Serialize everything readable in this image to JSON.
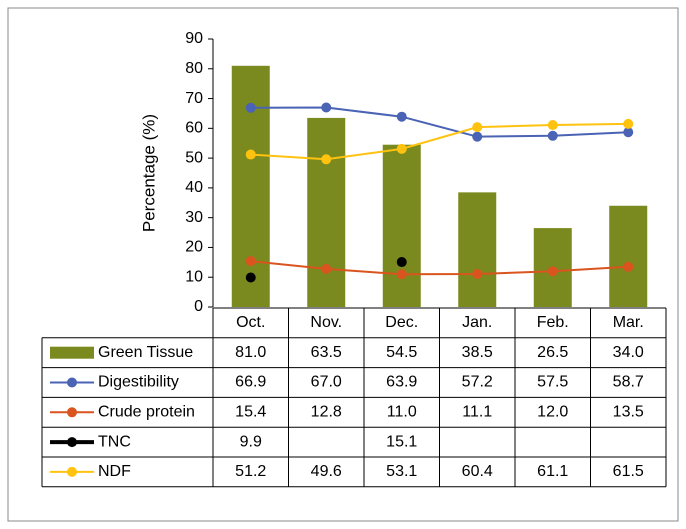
{
  "chart_data": {
    "type": "bar",
    "ylabel": "Percentage (%)",
    "categories": [
      "Oct.",
      "Nov.",
      "Dec.",
      "Jan.",
      "Feb.",
      "Mar."
    ],
    "ylim": [
      0,
      90
    ],
    "yticks": [
      0,
      10,
      20,
      30,
      40,
      50,
      60,
      70,
      80,
      90
    ],
    "series": [
      {
        "name": "Green Tissue",
        "type": "bar",
        "color": "#7b8a1f",
        "values": [
          81.0,
          63.5,
          54.5,
          38.5,
          26.5,
          34.0
        ],
        "value_labels": [
          "81.0",
          "63.5",
          "54.5",
          "38.5",
          "26.5",
          "34.0"
        ]
      },
      {
        "name": "Digestibility",
        "type": "line",
        "color": "#4a63b4",
        "values": [
          66.9,
          67.0,
          63.9,
          57.2,
          57.5,
          58.7
        ],
        "value_labels": [
          "66.9",
          "67.0",
          "63.9",
          "57.2",
          "57.5",
          "58.7"
        ]
      },
      {
        "name": "Crude protein",
        "type": "line",
        "color": "#d9541e",
        "values": [
          15.4,
          12.8,
          11.0,
          11.1,
          12.0,
          13.5
        ],
        "value_labels": [
          "15.4",
          "12.8",
          "11.0",
          "11.1",
          "12.0",
          "13.5"
        ]
      },
      {
        "name": "TNC",
        "type": "scatter",
        "color": "#000000",
        "values": [
          9.9,
          null,
          15.1,
          null,
          null,
          null
        ],
        "value_labels": [
          "9.9",
          null,
          "15.1",
          null,
          null,
          null
        ]
      },
      {
        "name": "NDF",
        "type": "line",
        "color": "#ffc20e",
        "values": [
          51.2,
          49.6,
          53.1,
          60.4,
          61.1,
          61.5
        ],
        "value_labels": [
          "51.2",
          "49.6",
          "53.1",
          "60.4",
          "61.1",
          "61.5"
        ]
      }
    ]
  }
}
